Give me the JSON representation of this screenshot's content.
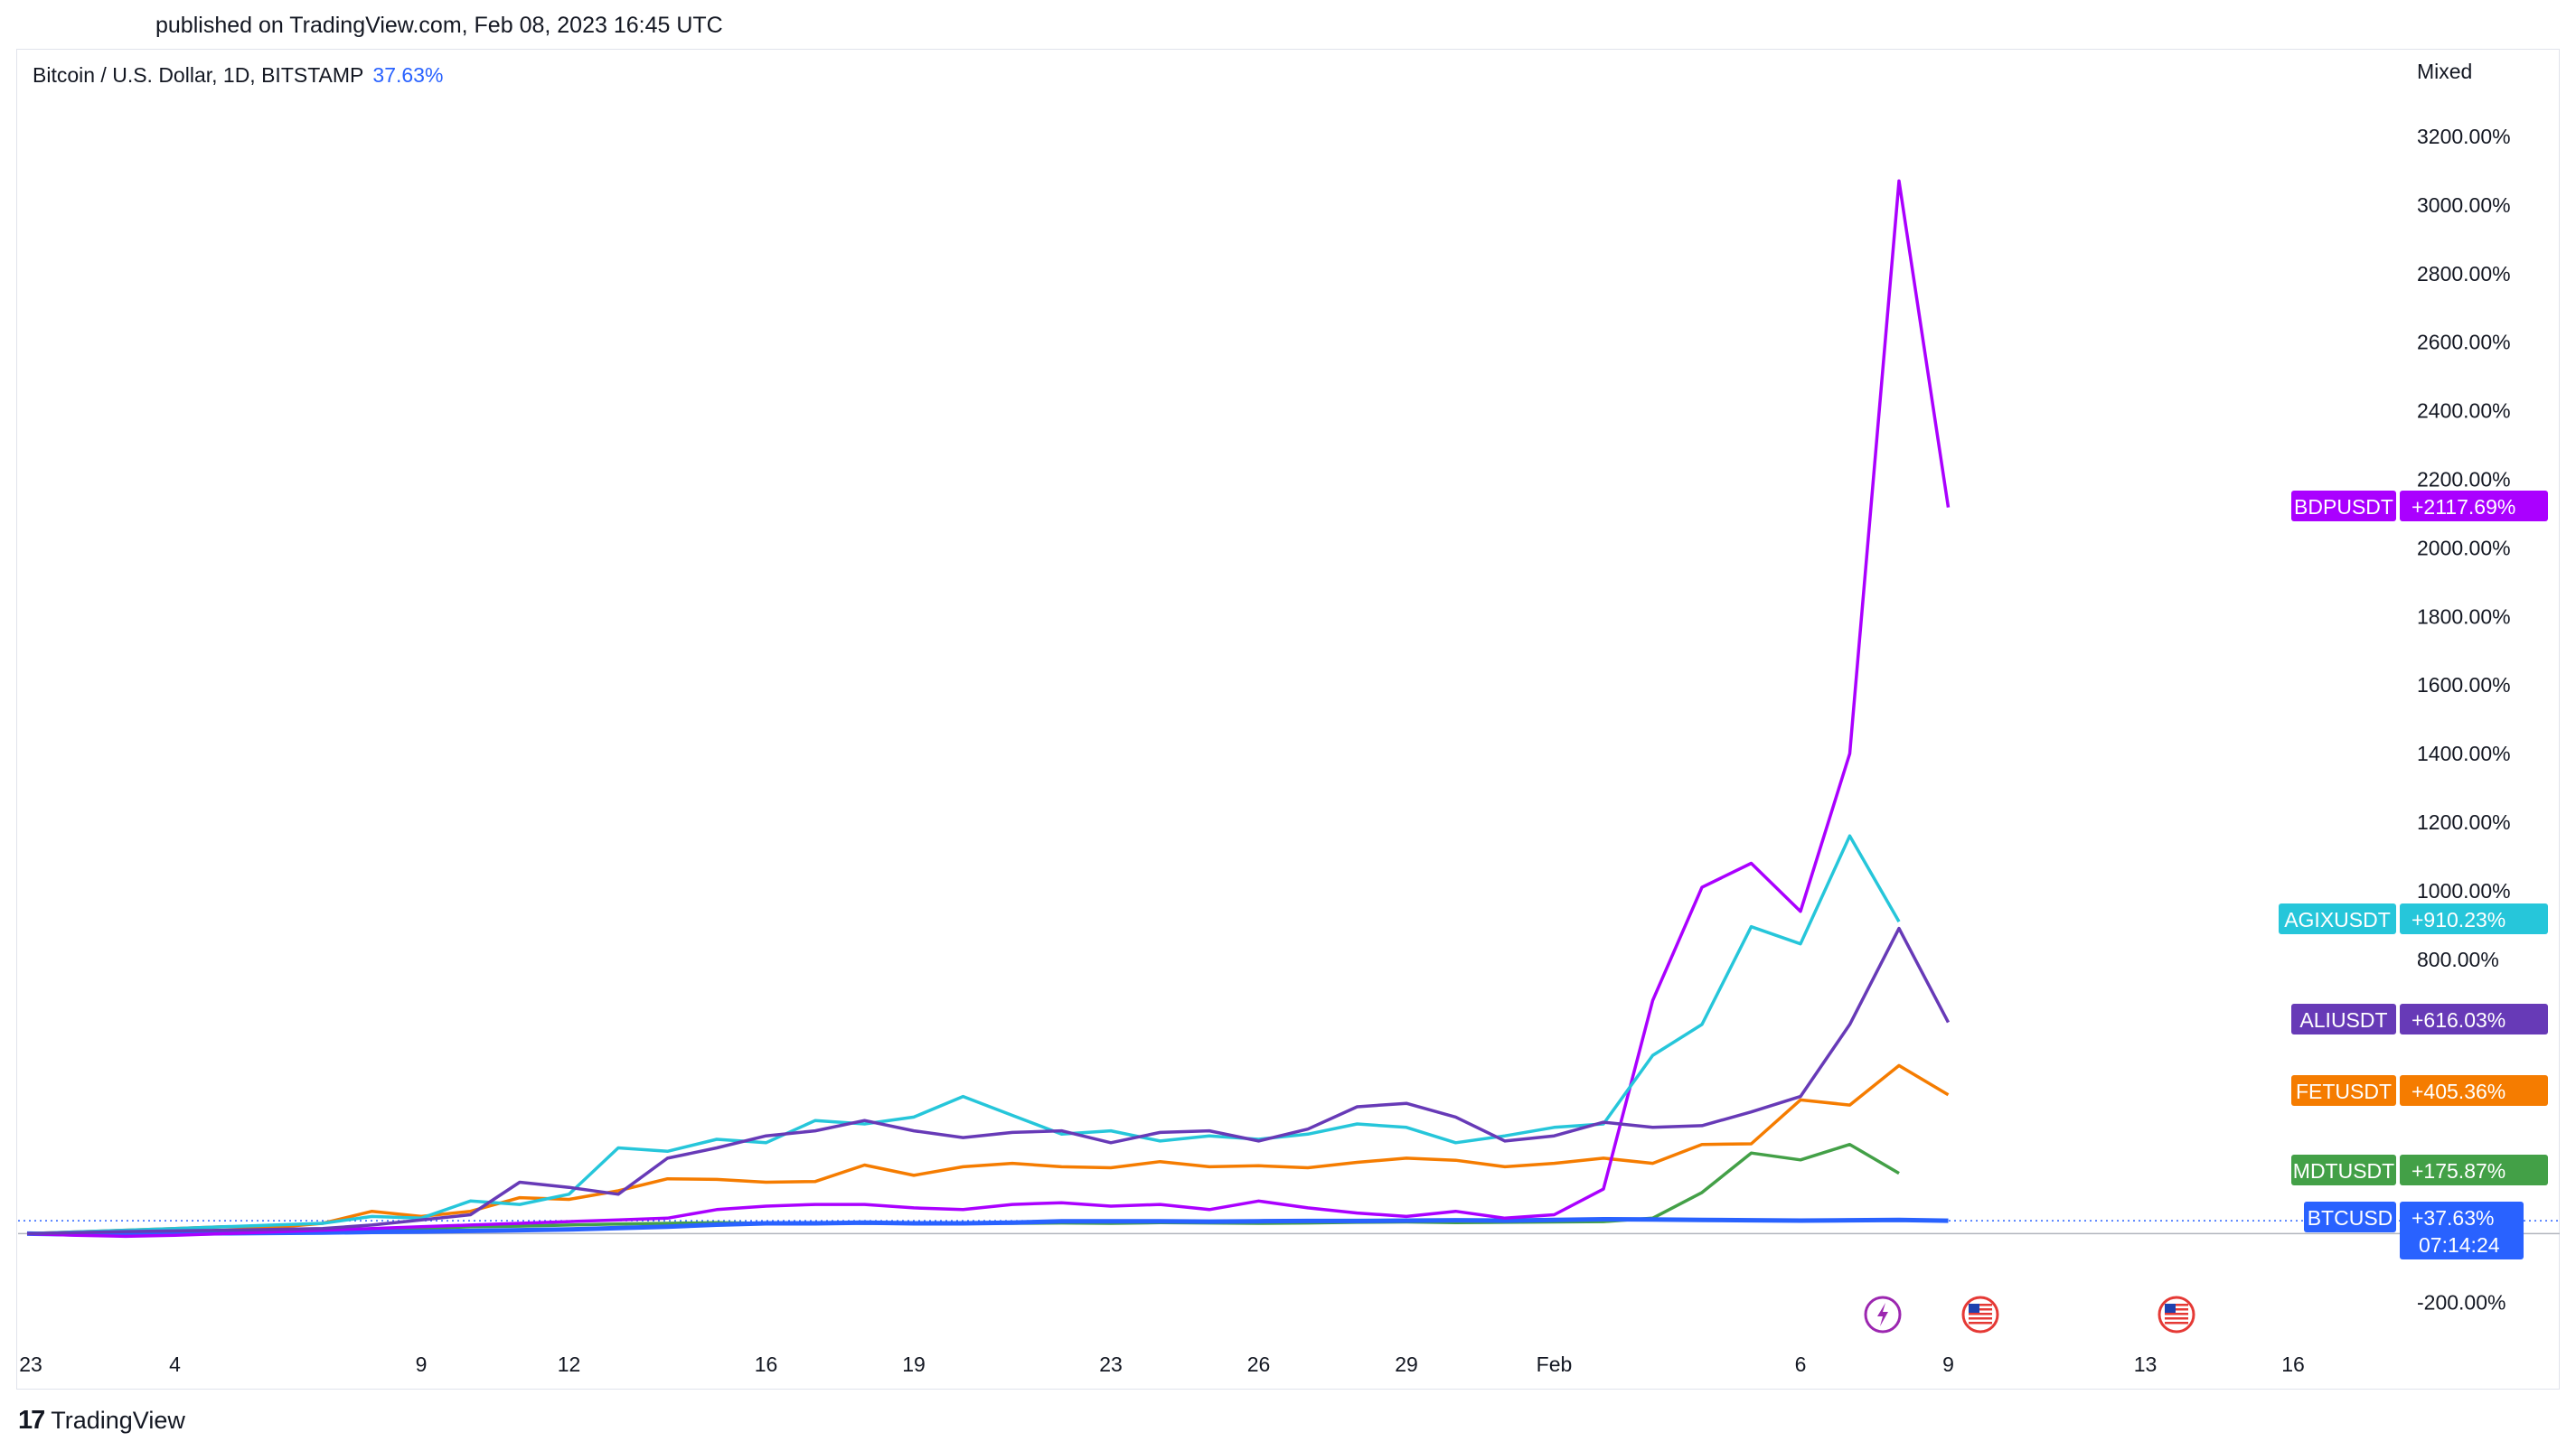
{
  "header": {
    "published": "published on TradingView.com, Feb 08, 2023 16:45 UTC",
    "symbol": "Bitcoin / U.S. Dollar, 1D, BITSTAMP",
    "symbol_change": "37.63%",
    "scale_mode": "Mixed"
  },
  "footer": {
    "brand": "TradingView",
    "brand_mark": "17"
  },
  "chart_data": {
    "type": "line",
    "title": "Bitcoin / U.S. Dollar, 1D, BITSTAMP",
    "ylabel": "",
    "xlabel": "",
    "ylim": [
      -300,
      3400
    ],
    "y_ticks": [
      3200,
      3000,
      2800,
      2600,
      2400,
      2200,
      2000,
      1800,
      1600,
      1400,
      1200,
      1000,
      800,
      -200
    ],
    "y_tick_format": "{v}.00%",
    "x_ticks": [
      {
        "day": 1,
        "label": "23"
      },
      {
        "day": 4,
        "label": "4"
      },
      {
        "day": 9,
        "label": "9"
      },
      {
        "day": 12,
        "label": "12"
      },
      {
        "day": 16,
        "label": "16"
      },
      {
        "day": 19,
        "label": "19"
      },
      {
        "day": 23,
        "label": "23"
      },
      {
        "day": 26,
        "label": "26"
      },
      {
        "day": 29,
        "label": "29"
      },
      {
        "day": 32,
        "label": "Feb"
      },
      {
        "day": 37,
        "label": "6"
      },
      {
        "day": 40,
        "label": "9"
      },
      {
        "day": 44,
        "label": "13"
      },
      {
        "day": 47,
        "label": "16"
      }
    ],
    "x_range": [
      1,
      49
    ],
    "x_start": 1,
    "series": [
      {
        "name": "FETUSDT",
        "color": "#f57c00",
        "last_label": "+405.36%",
        "values": [
          0,
          5,
          10,
          15,
          20,
          18,
          30,
          65,
          50,
          65,
          105,
          100,
          125,
          160,
          158,
          150,
          152,
          200,
          170,
          195,
          205,
          195,
          192,
          210,
          195,
          198,
          192,
          208,
          220,
          214,
          195,
          205,
          220,
          205,
          260,
          262,
          390,
          375,
          490,
          405
        ]
      },
      {
        "name": "MDTUSDT",
        "color": "#43a047",
        "last_label": "+175.87%",
        "values": [
          0,
          1,
          2,
          3,
          4,
          5,
          6,
          10,
          15,
          20,
          22,
          25,
          28,
          30,
          32,
          30,
          32,
          30,
          30,
          31,
          30,
          31,
          30,
          32,
          31,
          30,
          31,
          33,
          34,
          32,
          33,
          34,
          35,
          45,
          120,
          235,
          215,
          260,
          176
        ]
      },
      {
        "name": "BTCUSD",
        "color": "#2962ff",
        "last_label": "+37.63%",
        "values": [
          0,
          -2,
          -4,
          0,
          1,
          2,
          3,
          5,
          6,
          8,
          10,
          12,
          16,
          20,
          26,
          30,
          30,
          32,
          30,
          30,
          32,
          36,
          36,
          36,
          35,
          36,
          37,
          37,
          38,
          39,
          38,
          40,
          42,
          41,
          40,
          39,
          38,
          39,
          40,
          37.63
        ]
      },
      {
        "name": "BDPUSDT",
        "color": "#aa00ff",
        "last_label": "+2117.69%",
        "values": [
          0,
          -5,
          -8,
          -5,
          0,
          5,
          10,
          15,
          20,
          25,
          30,
          35,
          40,
          45,
          70,
          80,
          85,
          85,
          75,
          70,
          85,
          90,
          80,
          85,
          70,
          95,
          75,
          60,
          50,
          65,
          45,
          55,
          130,
          680,
          1010,
          1080,
          940,
          1400,
          3070,
          2118
        ]
      },
      {
        "name": "AGIXUSDT",
        "color": "#26c6da",
        "last_label": "+910.23%",
        "values": [
          0,
          5,
          10,
          15,
          20,
          25,
          30,
          50,
          45,
          95,
          85,
          115,
          250,
          240,
          275,
          265,
          330,
          320,
          340,
          400,
          345,
          290,
          300,
          270,
          285,
          275,
          290,
          320,
          310,
          265,
          285,
          310,
          320,
          520,
          610,
          895,
          845,
          1160,
          910
        ]
      },
      {
        "name": "ALIUSDT",
        "color": "#673ab7",
        "last_label": "+616.03%",
        "values": [
          0,
          3,
          6,
          8,
          10,
          12,
          15,
          25,
          40,
          55,
          150,
          135,
          115,
          220,
          250,
          285,
          300,
          330,
          300,
          280,
          295,
          300,
          265,
          295,
          300,
          270,
          305,
          370,
          380,
          340,
          270,
          285,
          325,
          310,
          315,
          355,
          400,
          610,
          890,
          616
        ]
      }
    ],
    "labels_order": [
      "BDPUSDT",
      "AGIXUSDT",
      "ALIUSDT",
      "FETUSDT",
      "MDTUSDT",
      "BTCUSD"
    ],
    "btc_countdown": "07:14:24"
  }
}
